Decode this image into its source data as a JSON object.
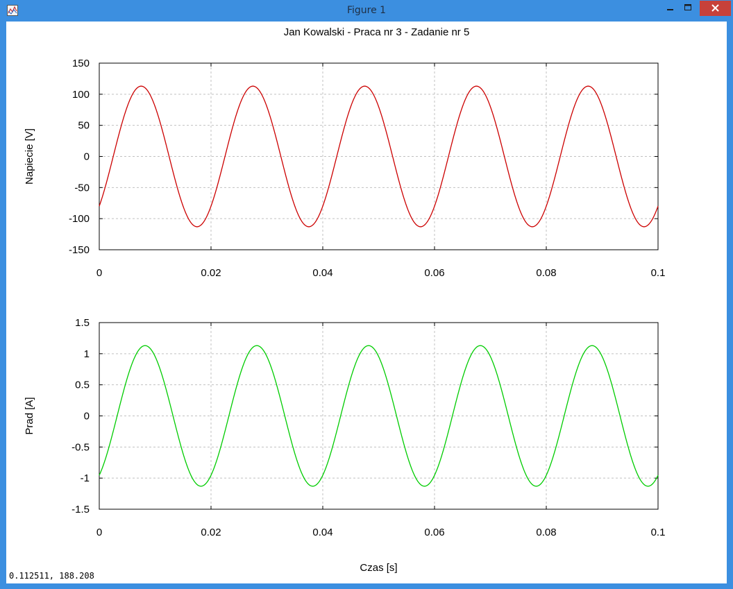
{
  "window": {
    "title": "Figure 1",
    "buttons": {
      "minimize": "minimize",
      "maximize": "maximize",
      "close": "close"
    }
  },
  "status": {
    "coords": "0.112511,  188.208"
  },
  "icons": [
    "figure-app-icon",
    "minimize-icon",
    "maximize-icon",
    "close-icon"
  ],
  "colors": {
    "titlebar": "#3c8fe0",
    "close": "#c7413a",
    "voltage": "#cc0000",
    "current": "#00cc00",
    "grid": "#c0c0c0"
  },
  "chart_data": [
    {
      "type": "line",
      "title": "Jan Kowalski - Praca nr 3 - Zadanie nr 5",
      "xlabel": "",
      "ylabel": "Napiecie [V]",
      "xlim": [
        0,
        0.1
      ],
      "ylim": [
        -150,
        150
      ],
      "xticks": [
        "0",
        "0.02",
        "0.04",
        "0.06",
        "0.08",
        "0.1"
      ],
      "yticks": [
        "150",
        "100",
        "50",
        "0",
        "-50",
        "-100",
        "-150"
      ],
      "grid": true,
      "series": [
        {
          "amplitude": 113,
          "frequency_hz": 50,
          "x": [
            0,
            0.0025,
            0.0075,
            0.0125,
            0.0175,
            0.0225,
            0.0275,
            0.0325,
            0.0375,
            0.0425,
            0.0475,
            0.0525,
            0.0575,
            0.0625,
            0.0675,
            0.0725,
            0.0775,
            0.0825,
            0.0875,
            0.0925,
            0.0975,
            0.1
          ],
          "y": [
            -80,
            0,
            113,
            0,
            -113,
            0,
            113,
            0,
            -113,
            0,
            113,
            0,
            -113,
            0,
            113,
            0,
            -113,
            0,
            113,
            0,
            -113,
            -80
          ],
          "color": "#cc0000"
        }
      ]
    },
    {
      "type": "line",
      "title": "",
      "xlabel": "Czas [s]",
      "ylabel": "Prad [A]",
      "xlim": [
        0,
        0.1
      ],
      "ylim": [
        -1.5,
        1.5
      ],
      "xticks": [
        "0",
        "0.02",
        "0.04",
        "0.06",
        "0.08",
        "0.1"
      ],
      "yticks": [
        "1.5",
        "1",
        "0.5",
        "0",
        "-0.5",
        "-1",
        "-1.5"
      ],
      "grid": true,
      "series": [
        {
          "amplitude": 1.13,
          "frequency_hz": 50,
          "x": [
            0,
            0.0032,
            0.0082,
            0.0132,
            0.0182,
            0.0232,
            0.0282,
            0.0332,
            0.0382,
            0.0432,
            0.0482,
            0.0532,
            0.0582,
            0.0632,
            0.0682,
            0.0732,
            0.0782,
            0.0832,
            0.0882,
            0.0932,
            0.0982,
            0.1
          ],
          "y": [
            -0.95,
            0,
            1.13,
            0,
            -1.13,
            0,
            1.13,
            0,
            -1.13,
            0,
            1.13,
            0,
            -1.13,
            0,
            1.13,
            0,
            -1.13,
            0,
            1.13,
            0,
            -1.13,
            -0.95
          ],
          "color": "#00cc00"
        }
      ]
    }
  ]
}
